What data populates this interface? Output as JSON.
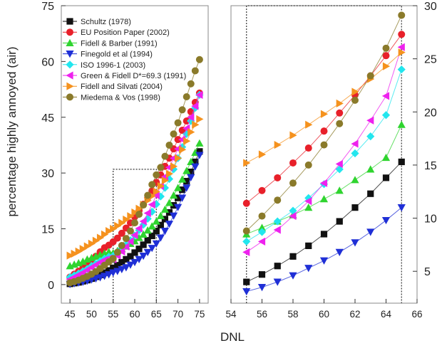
{
  "chart_data": [
    {
      "type": "scatter",
      "ylabel": "percentage highly annoyed (air)",
      "xlabel": "DNL",
      "xlim": [
        43,
        77
      ],
      "ylim": [
        -5,
        75
      ],
      "xticks": [
        45,
        50,
        55,
        60,
        65,
        70,
        75
      ],
      "yticks": [
        0,
        15,
        30,
        45,
        60,
        75
      ],
      "legend_position": "top-left",
      "inset_box": {
        "x": [
          55,
          65
        ],
        "y": [
          -5,
          31
        ]
      },
      "series": [
        {
          "name": "Schultz (1978)",
          "marker": "square",
          "color": "#111111",
          "x": [
            45,
            46,
            47,
            48,
            49,
            50,
            51,
            52,
            53,
            54,
            55,
            56,
            57,
            58,
            59,
            60,
            61,
            62,
            63,
            64,
            65,
            66,
            67,
            68,
            69,
            70,
            71,
            72,
            73,
            74,
            75
          ],
          "y": [
            0.2,
            0.4,
            0.6,
            0.9,
            1.2,
            1.6,
            2.1,
            2.6,
            3.2,
            3.8,
            4.5,
            5.2,
            6.0,
            6.8,
            7.6,
            8.6,
            9.6,
            10.7,
            11.9,
            13.1,
            14.4,
            16.0,
            17.6,
            19.4,
            21.3,
            23.3,
            25.5,
            27.8,
            30.3,
            33.0,
            35.8
          ]
        },
        {
          "name": "EU Position Paper (2002)",
          "marker": "circle",
          "color": "#e8202a",
          "x": [
            45,
            46,
            47,
            48,
            49,
            50,
            51,
            52,
            53,
            54,
            55,
            56,
            57,
            58,
            59,
            60,
            61,
            62,
            63,
            64,
            65,
            66,
            67,
            68,
            69,
            70,
            71,
            72,
            73,
            74,
            75
          ],
          "y": [
            2.0,
            2.8,
            3.6,
            4.5,
            5.5,
            6.5,
            7.6,
            8.8,
            9.9,
            10.6,
            11.5,
            12.5,
            13.8,
            15.2,
            16.6,
            18.2,
            19.9,
            21.6,
            23.4,
            25.2,
            27.5,
            29.5,
            31.8,
            34.0,
            36.5,
            39.0,
            41.5,
            44.0,
            46.5,
            49.0,
            51.5
          ]
        },
        {
          "name": "Fidell & Barber (1991)",
          "marker": "triangle-up",
          "color": "#2fd42f",
          "x": [
            45,
            46,
            47,
            48,
            49,
            50,
            51,
            52,
            53,
            54,
            55,
            56,
            57,
            58,
            59,
            60,
            61,
            62,
            63,
            64,
            65,
            66,
            67,
            68,
            69,
            70,
            71,
            72,
            73,
            74,
            75
          ],
          "y": [
            5.0,
            5.4,
            5.8,
            6.2,
            6.8,
            7.2,
            7.6,
            8.0,
            8.4,
            8.8,
            8.5,
            9.1,
            9.6,
            10.3,
            11.0,
            11.7,
            12.6,
            13.5,
            14.6,
            15.7,
            17.0,
            18.5,
            20.2,
            22.0,
            24.0,
            26.0,
            28.3,
            30.6,
            33.0,
            35.5,
            38.0
          ]
        },
        {
          "name": "Finegold et al (1994)",
          "marker": "triangle-down",
          "color": "#1f2fd6",
          "x": [
            45,
            46,
            47,
            48,
            49,
            50,
            51,
            52,
            53,
            54,
            55,
            56,
            57,
            58,
            59,
            60,
            61,
            62,
            63,
            64,
            65,
            66,
            67,
            68,
            69,
            70,
            71,
            72,
            73,
            74,
            75
          ],
          "y": [
            0.1,
            0.3,
            0.5,
            0.7,
            1.0,
            1.3,
            1.6,
            1.9,
            2.3,
            2.7,
            3.2,
            3.6,
            4.1,
            4.6,
            5.3,
            6.0,
            6.8,
            7.7,
            8.7,
            9.8,
            11.0,
            12.6,
            14.4,
            16.3,
            18.5,
            20.8,
            23.3,
            26.0,
            28.8,
            31.7,
            34.8
          ]
        },
        {
          "name": "ISO 1996-1 (2003)",
          "marker": "diamond",
          "color": "#22e6ee",
          "x": [
            45,
            46,
            47,
            48,
            49,
            50,
            51,
            52,
            53,
            54,
            55,
            56,
            57,
            58,
            59,
            60,
            61,
            62,
            63,
            64,
            65,
            66,
            67,
            68,
            69,
            70,
            71,
            72,
            73,
            74,
            75
          ],
          "y": [
            2.0,
            2.5,
            3.0,
            3.6,
            4.2,
            5.0,
            5.6,
            6.3,
            7.0,
            7.5,
            7.7,
            8.7,
            9.7,
            10.7,
            11.9,
            13.2,
            14.6,
            16.1,
            17.7,
            19.6,
            21.6,
            23.7,
            26.0,
            28.4,
            31.0,
            34.0,
            37.0,
            40.5,
            44.0,
            47.5,
            51.0
          ]
        },
        {
          "name": "Green & Fidell D*=69.3 (1991)",
          "marker": "triangle-left",
          "color": "#ee22ee",
          "x": [
            45,
            46,
            47,
            48,
            49,
            50,
            51,
            52,
            53,
            54,
            55,
            56,
            57,
            58,
            59,
            60,
            61,
            62,
            63,
            64,
            65,
            66,
            67,
            68,
            69,
            70,
            71,
            72,
            73,
            74,
            75
          ],
          "y": [
            1.4,
            2.0,
            2.6,
            3.2,
            3.9,
            4.6,
            5.3,
            6.0,
            6.6,
            7.0,
            6.8,
            7.8,
            8.9,
            10.2,
            11.6,
            13.3,
            15.1,
            17.0,
            19.2,
            21.5,
            24.0,
            26.5,
            29.0,
            31.5,
            34.0,
            36.5,
            39.0,
            42.0,
            45.0,
            48.0,
            51.0
          ]
        },
        {
          "name": "Fidell and Silvati (2004)",
          "marker": "triangle-right",
          "color": "#f5921e",
          "x": [
            45,
            46,
            47,
            48,
            49,
            50,
            51,
            52,
            53,
            54,
            55,
            56,
            57,
            58,
            59,
            60,
            61,
            62,
            63,
            64,
            65,
            66,
            67,
            68,
            69,
            70,
            71,
            72,
            73,
            74,
            75
          ],
          "y": [
            7.8,
            8.3,
            8.9,
            9.6,
            10.3,
            11.0,
            11.8,
            12.6,
            13.5,
            14.4,
            15.0,
            15.8,
            16.6,
            17.5,
            18.4,
            19.4,
            20.4,
            21.5,
            22.6,
            23.8,
            25.0,
            26.5,
            28.0,
            29.8,
            31.8,
            34.0,
            36.3,
            38.6,
            41.0,
            43.0,
            44.5
          ]
        },
        {
          "name": "Miedema & Vos (1998)",
          "marker": "circle",
          "color": "#8a7a2a",
          "x": [
            45,
            46,
            47,
            48,
            49,
            50,
            51,
            52,
            53,
            54,
            55,
            56,
            57,
            58,
            59,
            60,
            61,
            62,
            63,
            64,
            65,
            66,
            67,
            68,
            69,
            70,
            71,
            72,
            73,
            74,
            75
          ],
          "y": [
            0.5,
            0.8,
            1.2,
            1.7,
            2.2,
            2.8,
            3.5,
            4.3,
            5.2,
            6.1,
            7.0,
            8.7,
            10.5,
            12.4,
            14.4,
            16.6,
            18.9,
            21.4,
            24.0,
            26.9,
            29.5,
            31.5,
            34.5,
            37.5,
            40.5,
            43.5,
            47.0,
            50.5,
            54.0,
            57.5,
            60.5
          ]
        }
      ]
    },
    {
      "type": "scatter",
      "xlim": [
        54,
        66
      ],
      "ylim": [
        2,
        30
      ],
      "xticks": [
        54,
        56,
        58,
        60,
        62,
        64,
        66
      ],
      "yticks": [
        5,
        10,
        15,
        20,
        25,
        30
      ],
      "y_axis_side": "right",
      "zoom_box": {
        "x": [
          55,
          65
        ],
        "y": [
          2,
          30
        ]
      },
      "series": [
        {
          "name": "Schultz (1978)",
          "marker": "square",
          "color": "#111111",
          "x": [
            55,
            56,
            57,
            58,
            59,
            60,
            61,
            62,
            63,
            64,
            65
          ],
          "y": [
            4.0,
            4.7,
            5.5,
            6.4,
            7.4,
            8.5,
            9.7,
            11.0,
            12.3,
            13.8,
            15.3
          ]
        },
        {
          "name": "EU Position Paper (2002)",
          "marker": "circle",
          "color": "#e8202a",
          "x": [
            55,
            56,
            57,
            58,
            59,
            60,
            61,
            62,
            63,
            64,
            65
          ],
          "y": [
            11.4,
            12.6,
            13.8,
            15.2,
            16.6,
            18.2,
            19.9,
            21.6,
            23.4,
            25.3,
            27.3
          ]
        },
        {
          "name": "Fidell & Barber (1991)",
          "marker": "triangle-up",
          "color": "#2fd42f",
          "x": [
            55,
            56,
            57,
            58,
            59,
            60,
            61,
            62,
            63,
            64,
            65
          ],
          "y": [
            8.5,
            9.1,
            9.7,
            10.3,
            11.0,
            11.8,
            12.6,
            13.6,
            14.6,
            15.7,
            18.8
          ]
        },
        {
          "name": "Finegold et al (1994)",
          "marker": "triangle-down",
          "color": "#1f2fd6",
          "x": [
            55,
            56,
            57,
            58,
            59,
            60,
            61,
            62,
            63,
            64,
            65
          ],
          "y": [
            3.1,
            3.5,
            4.0,
            4.6,
            5.3,
            6.0,
            6.8,
            7.7,
            8.7,
            9.8,
            11.0
          ]
        },
        {
          "name": "ISO 1996-1 (2003)",
          "marker": "diamond",
          "color": "#22e6ee",
          "x": [
            55,
            56,
            57,
            58,
            59,
            60,
            61,
            62,
            63,
            64,
            65
          ],
          "y": [
            7.8,
            8.7,
            9.7,
            10.7,
            11.9,
            13.2,
            14.6,
            16.1,
            17.7,
            19.7,
            24.0
          ]
        },
        {
          "name": "Green & Fidell D*=69.3 (1991)",
          "marker": "triangle-left",
          "color": "#ee22ee",
          "x": [
            55,
            56,
            57,
            58,
            59,
            60,
            61,
            62,
            63,
            64,
            65
          ],
          "y": [
            6.8,
            7.8,
            8.9,
            10.2,
            11.6,
            13.3,
            15.1,
            17.0,
            19.2,
            21.5,
            26.1
          ]
        },
        {
          "name": "Fidell and Silvati (2004)",
          "marker": "triangle-right",
          "color": "#f5921e",
          "x": [
            55,
            56,
            57,
            58,
            59,
            60,
            61,
            62,
            63,
            64,
            65
          ],
          "y": [
            15.2,
            16.0,
            16.9,
            17.8,
            18.8,
            19.8,
            20.8,
            21.9,
            23.1,
            24.3,
            25.6
          ]
        },
        {
          "name": "Miedema & Vos (1998)",
          "marker": "circle",
          "color": "#8a7a2a",
          "x": [
            55,
            56,
            57,
            58,
            59,
            60,
            61,
            62,
            63,
            64,
            65
          ],
          "y": [
            8.8,
            10.2,
            11.7,
            13.3,
            15.0,
            16.9,
            18.9,
            21.1,
            23.4,
            26.0,
            29.1
          ]
        }
      ]
    }
  ]
}
